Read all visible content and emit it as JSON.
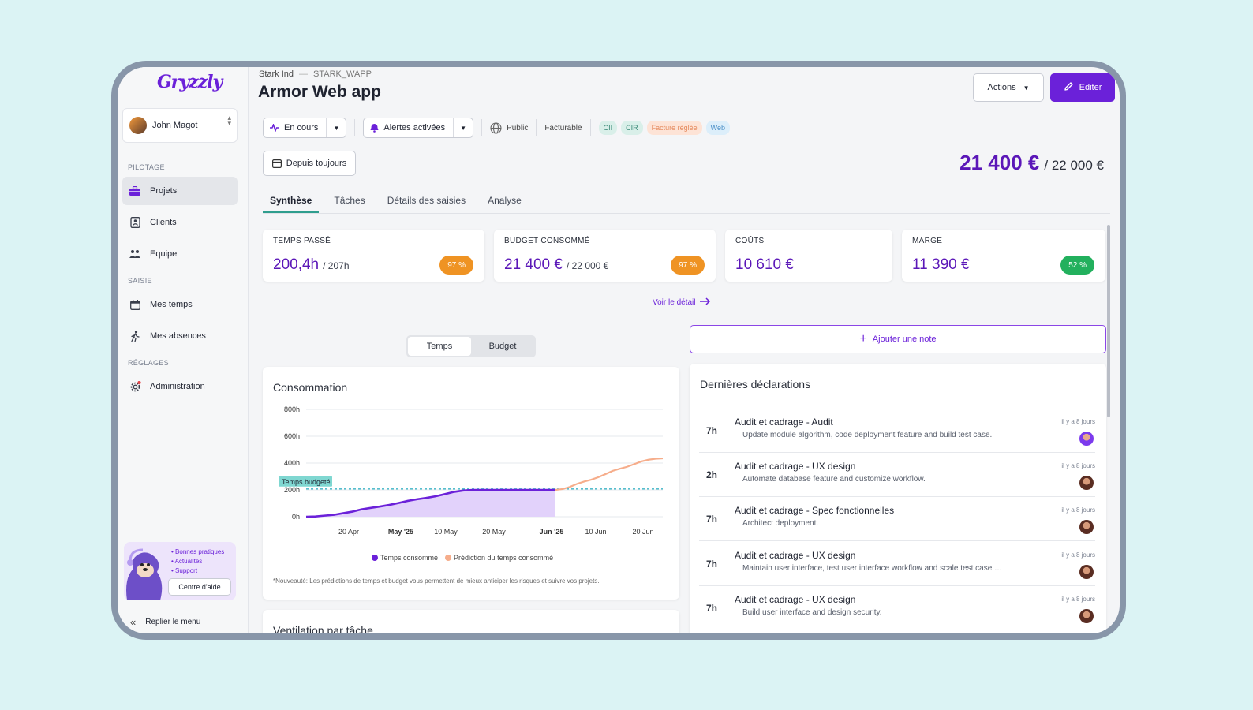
{
  "app": {
    "logo": "Gryzzly"
  },
  "user": {
    "name": "John Magot"
  },
  "sidebar": {
    "sections": {
      "pilotage": "PILOTAGE",
      "saisie": "SAISIE",
      "reglages": "RÉGLAGES"
    },
    "items": [
      {
        "label": "Projets",
        "icon": "briefcase-icon"
      },
      {
        "label": "Clients",
        "icon": "contact-card-icon"
      },
      {
        "label": "Equipe",
        "icon": "team-icon"
      },
      {
        "label": "Mes temps",
        "icon": "calendar-icon"
      },
      {
        "label": "Mes absences",
        "icon": "walking-icon"
      },
      {
        "label": "Administration",
        "icon": "gear-icon"
      }
    ],
    "help": {
      "links": [
        "Bonnes pratiques",
        "Actualités",
        "Support"
      ],
      "button": "Centre d'aide"
    },
    "collapse": "Replier le menu"
  },
  "header": {
    "breadcrumb": {
      "client": "Stark Ind",
      "sep": "—",
      "code": "STARK_WAPP"
    },
    "title": "Armor Web app",
    "actions_label": "Actions",
    "edit_label": "Editer"
  },
  "filters": {
    "status": "En cours",
    "alerts": "Alertes activées",
    "visibility": "Public",
    "billing": "Facturable",
    "tags": [
      "CII",
      "CIR",
      "Facture réglée",
      "Web"
    ],
    "period": "Depuis toujours"
  },
  "totals": {
    "spent": "21 400 €",
    "budget": "/ 22 000 €"
  },
  "tabs": [
    "Synthèse",
    "Tâches",
    "Détails des saisies",
    "Analyse"
  ],
  "kpis": [
    {
      "label": "TEMPS PASSÉ",
      "value": "200,4h",
      "sub": "/ 207h",
      "badge": "97 %",
      "badge_color": "#ef9323"
    },
    {
      "label": "BUDGET CONSOMMÉ",
      "value": "21 400 €",
      "sub": "/ 22 000 €",
      "badge": "97 %",
      "badge_color": "#ef9323"
    },
    {
      "label": "COÛTS",
      "value": "10 610 €",
      "sub": "",
      "badge": "",
      "badge_color": ""
    },
    {
      "label": "MARGE",
      "value": "11 390 €",
      "sub": "",
      "badge": "52 %",
      "badge_color": "#22b05d"
    }
  ],
  "detail_link": "Voir le détail",
  "toggle": {
    "a": "Temps",
    "b": "Budget"
  },
  "add_note": "Ajouter une note",
  "consumption": {
    "title": "Consommation",
    "footnote": "*Nouveauté: Les prédictions de temps et budget vous permettent de mieux anticiper les risques et suivre vos projets."
  },
  "chart_data": {
    "type": "line",
    "yticks": [
      "800h",
      "600h",
      "400h",
      "200h",
      "0h"
    ],
    "ylim": [
      0,
      800
    ],
    "xticks": [
      "20 Apr",
      "May '25",
      "10 May",
      "20 May",
      "Jun '25",
      "10 Jun",
      "20 Jun"
    ],
    "xticks_bold": [
      false,
      true,
      false,
      false,
      true,
      false,
      false
    ],
    "budget_line_label": "Temps budgeté",
    "budget_value": 207,
    "series": [
      {
        "name": "Temps consommé",
        "color": "#6b21d9",
        "values": [
          0,
          2,
          8,
          14,
          26,
          38,
          55,
          66,
          76,
          88,
          102,
          118,
          130,
          140,
          152,
          168,
          185,
          195,
          200,
          200,
          200,
          200,
          200,
          200,
          200,
          200,
          200,
          200
        ]
      },
      {
        "name": "Prédiction du temps consommé",
        "color": "#f6ad8b",
        "values": [
          200,
          206,
          222,
          245,
          262,
          276,
          295,
          318,
          342,
          358,
          372,
          392,
          412,
          425,
          432,
          435
        ]
      }
    ]
  },
  "ventilation": {
    "title": "Ventilation par tâche"
  },
  "declarations": {
    "title": "Dernières déclarations",
    "rows": [
      {
        "hours": "7h",
        "task": "Audit et cadrage - Audit",
        "desc": "Update module algorithm, code deployment feature and build test case.",
        "ago": "il y a 8 jours"
      },
      {
        "hours": "2h",
        "task": "Audit et cadrage - UX design",
        "desc": "Automate database feature and customize workflow.",
        "ago": "il y a 8 jours"
      },
      {
        "hours": "7h",
        "task": "Audit et cadrage - Spec fonctionnelles",
        "desc": "Architect deployment.",
        "ago": "il y a 8 jours"
      },
      {
        "hours": "7h",
        "task": "Audit et cadrage - UX design",
        "desc": "Maintain user interface, test user interface workflow and scale test case …",
        "ago": "il y a 8 jours"
      },
      {
        "hours": "7h",
        "task": "Audit et cadrage - UX design",
        "desc": "Build user interface and design security.",
        "ago": "il y a 8 jours"
      }
    ]
  }
}
